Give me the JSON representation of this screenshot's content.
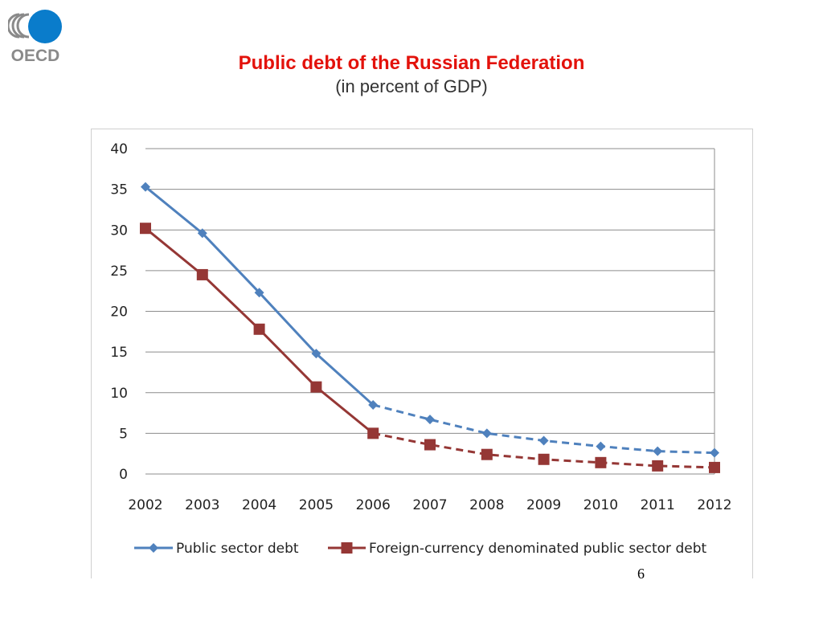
{
  "logo": {
    "text": "OECD",
    "icon": "oecd-logo"
  },
  "header": {
    "title": "Public debt of the Russian Federation",
    "subtitle": "(in percent of GDP)"
  },
  "page_number": "6",
  "colors": {
    "title": "#e3120b",
    "series_public": "#4f81bd",
    "series_foreign": "#953735",
    "grid": "#8c8c8c"
  },
  "chart_data": {
    "type": "line",
    "categories": [
      "2002",
      "2003",
      "2004",
      "2005",
      "2006",
      "2007",
      "2008",
      "2009",
      "2010",
      "2011",
      "2012"
    ],
    "ylim": [
      0,
      40
    ],
    "yticks": [
      "0",
      "5",
      "10",
      "15",
      "20",
      "25",
      "30",
      "35",
      "40"
    ],
    "grid": true,
    "legend_position": "bottom",
    "projection_start": "2006",
    "series": [
      {
        "name": "Public sector debt",
        "marker": "diamond",
        "color": "#4f81bd",
        "values": [
          35.3,
          29.6,
          22.3,
          14.8,
          8.5,
          6.7,
          5.0,
          4.1,
          3.4,
          2.8,
          2.6
        ]
      },
      {
        "name": "Foreign-currency denominated public sector debt",
        "marker": "square",
        "color": "#953735",
        "values": [
          30.2,
          24.5,
          17.8,
          10.7,
          5.0,
          3.6,
          2.4,
          1.8,
          1.4,
          1.0,
          0.8
        ]
      }
    ]
  }
}
